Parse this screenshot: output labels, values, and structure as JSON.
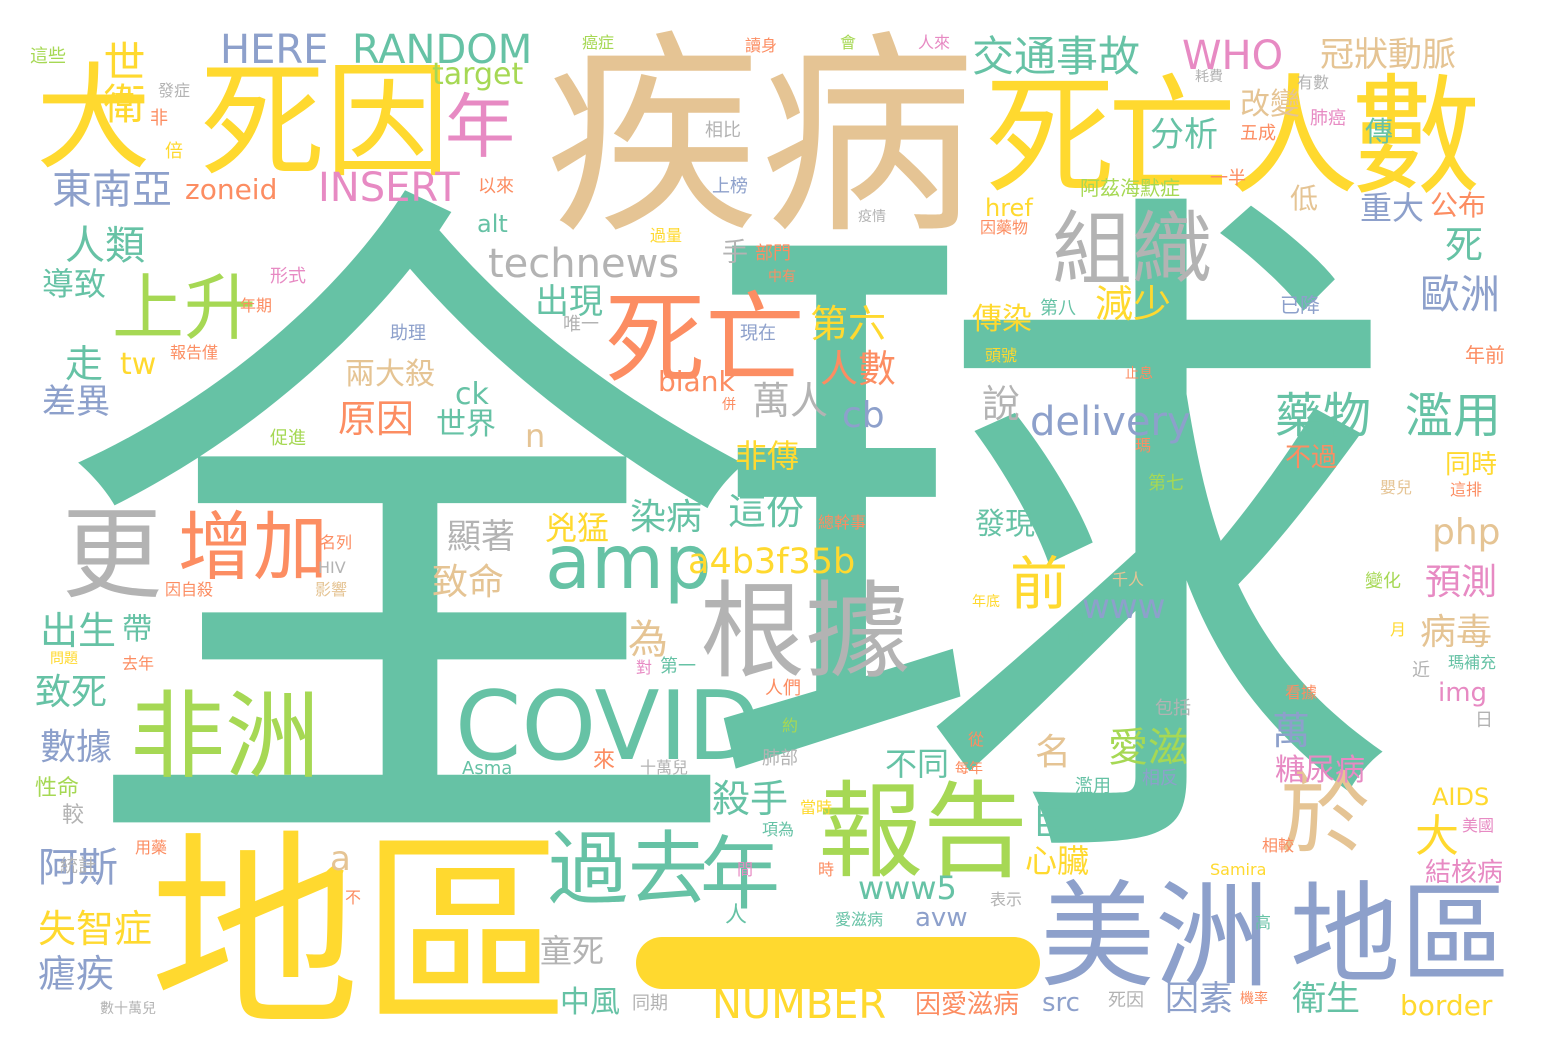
{
  "palette": {
    "teal": "#66c2a5",
    "orange": "#fc8d62",
    "blue": "#8da0cb",
    "pink": "#e78ac3",
    "green": "#a6d854",
    "yellow": "#ffd92f",
    "tan": "#e5c494",
    "gray": "#b3b3b3"
  },
  "words": [
    {
      "text": "全球",
      "color": "teal"
    },
    {
      "text": "疾病",
      "color": "tan"
    },
    {
      "text": "地區",
      "color": "yellow"
    },
    {
      "text": "死因",
      "color": "yellow"
    },
    {
      "text": "大",
      "color": "yellow"
    },
    {
      "text": "死亡人數",
      "color": "yellow"
    },
    {
      "text": "美洲",
      "color": "blue"
    },
    {
      "text": "地區",
      "color": "blue"
    },
    {
      "text": "非洲",
      "color": "green"
    },
    {
      "text": "COVID",
      "color": "teal"
    },
    {
      "text": "報告",
      "color": "green"
    },
    {
      "text": "根據",
      "color": "gray"
    },
    {
      "text": "更",
      "color": "gray"
    },
    {
      "text": "組織",
      "color": "gray"
    },
    {
      "text": "死亡",
      "color": "orange"
    },
    {
      "text": "增加",
      "color": "orange"
    },
    {
      "text": "過去",
      "color": "teal"
    },
    {
      "text": "年",
      "color": "teal"
    },
    {
      "text": "上升",
      "color": "green"
    },
    {
      "text": "於",
      "color": "tan"
    },
    {
      "text": "amp",
      "color": "teal"
    },
    {
      "text": "年",
      "color": "pink"
    },
    {
      "text": "世衛",
      "color": "yellow"
    },
    {
      "text": "HERE",
      "color": "blue"
    },
    {
      "text": "RANDOM",
      "color": "teal"
    },
    {
      "text": "交通事故",
      "color": "teal"
    },
    {
      "text": "WHO",
      "color": "pink"
    },
    {
      "text": "冠狀動脈",
      "color": "tan"
    },
    {
      "text": "target",
      "color": "green"
    },
    {
      "text": "INSERT",
      "color": "pink"
    },
    {
      "text": "zoneid",
      "color": "orange"
    },
    {
      "text": "東南亞",
      "color": "blue"
    },
    {
      "text": "人類",
      "color": "teal"
    },
    {
      "text": "technews",
      "color": "gray"
    },
    {
      "text": "分析",
      "color": "teal"
    },
    {
      "text": "改變",
      "color": "tan"
    },
    {
      "text": "重大",
      "color": "blue"
    },
    {
      "text": "公布",
      "color": "orange"
    },
    {
      "text": "歐洲",
      "color": "blue"
    },
    {
      "text": "死",
      "color": "teal"
    },
    {
      "text": "減少",
      "color": "yellow"
    },
    {
      "text": "傳染",
      "color": "yellow"
    },
    {
      "text": "第六",
      "color": "yellow"
    },
    {
      "text": "人數",
      "color": "orange"
    },
    {
      "text": "出現",
      "color": "teal"
    },
    {
      "text": "tw",
      "color": "yellow"
    },
    {
      "text": "走",
      "color": "teal"
    },
    {
      "text": "差異",
      "color": "blue"
    },
    {
      "text": "導致",
      "color": "teal"
    },
    {
      "text": "萬人",
      "color": "gray"
    },
    {
      "text": "cb",
      "color": "blue"
    },
    {
      "text": "原因",
      "color": "orange"
    },
    {
      "text": "世界",
      "color": "teal"
    },
    {
      "text": "兩大殺",
      "color": "tan"
    },
    {
      "text": "ck",
      "color": "teal"
    },
    {
      "text": "blank",
      "color": "orange"
    },
    {
      "text": "delivery",
      "color": "blue"
    },
    {
      "text": "藥物",
      "color": "teal"
    },
    {
      "text": "濫用",
      "color": "teal"
    },
    {
      "text": "說",
      "color": "gray"
    },
    {
      "text": "n",
      "color": "tan"
    },
    {
      "text": "這份",
      "color": "teal"
    },
    {
      "text": "染病",
      "color": "teal"
    },
    {
      "text": "非傳",
      "color": "yellow"
    },
    {
      "text": "顯著",
      "color": "gray"
    },
    {
      "text": "兇猛",
      "color": "yellow"
    },
    {
      "text": "a4b3f35b",
      "color": "yellow"
    },
    {
      "text": "致命",
      "color": "tan"
    },
    {
      "text": "為",
      "color": "tan"
    },
    {
      "text": "帶",
      "color": "teal"
    },
    {
      "text": "出生",
      "color": "teal"
    },
    {
      "text": "致死",
      "color": "teal"
    },
    {
      "text": "數據",
      "color": "blue"
    },
    {
      "text": "前",
      "color": "yellow"
    },
    {
      "text": "www",
      "color": "blue"
    },
    {
      "text": "php",
      "color": "tan"
    },
    {
      "text": "預測",
      "color": "pink"
    },
    {
      "text": "病毒",
      "color": "tan"
    },
    {
      "text": "萬",
      "color": "blue"
    },
    {
      "text": "愛滋",
      "color": "green"
    },
    {
      "text": "發現",
      "color": "teal"
    },
    {
      "text": "不同",
      "color": "teal"
    },
    {
      "text": "殺手",
      "color": "teal"
    },
    {
      "text": "名",
      "color": "tan"
    },
    {
      "text": "巨大",
      "color": "teal"
    },
    {
      "text": "心臟",
      "color": "yellow"
    },
    {
      "text": "大",
      "color": "yellow"
    },
    {
      "text": "糖尿病",
      "color": "pink"
    },
    {
      "text": "阿斯",
      "color": "blue"
    },
    {
      "text": "失智症",
      "color": "yellow"
    },
    {
      "text": "瘧疾",
      "color": "blue"
    },
    {
      "text": "a",
      "color": "tan"
    },
    {
      "text": "www5",
      "color": "teal"
    },
    {
      "text": "童死",
      "color": "gray"
    },
    {
      "text": "avw",
      "color": "blue"
    },
    {
      "text": "結核病",
      "color": "pink"
    },
    {
      "text": "AIDS",
      "color": "yellow"
    },
    {
      "text": "NUMBER",
      "color": "yellow"
    },
    {
      "text": "中風",
      "color": "teal"
    },
    {
      "text": "因愛滋病",
      "color": "orange"
    },
    {
      "text": "src",
      "color": "blue"
    },
    {
      "text": "因素",
      "color": "blue"
    },
    {
      "text": "衛生",
      "color": "teal"
    },
    {
      "text": "border",
      "color": "yellow"
    },
    {
      "text": "alt",
      "color": "teal"
    },
    {
      "text": "href",
      "color": "yellow"
    },
    {
      "text": "低",
      "color": "tan"
    },
    {
      "text": "同時",
      "color": "yellow"
    },
    {
      "text": "不過",
      "color": "orange"
    },
    {
      "text": "img",
      "color": "pink"
    },
    {
      "text": "手",
      "color": "gray"
    },
    {
      "text": "上榜",
      "color": "blue"
    },
    {
      "text": "以來",
      "color": "orange"
    },
    {
      "text": "相比",
      "color": "gray"
    },
    {
      "text": "非",
      "color": "orange"
    },
    {
      "text": "倍",
      "color": "yellow"
    },
    {
      "text": "發症",
      "color": "gray"
    },
    {
      "text": "一半",
      "color": "orange"
    },
    {
      "text": "五成",
      "color": "orange"
    },
    {
      "text": "肺癌",
      "color": "pink"
    },
    {
      "text": "傳",
      "color": "teal"
    },
    {
      "text": "有數",
      "color": "gray"
    },
    {
      "text": "阿茲海默症",
      "color": "green"
    },
    {
      "text": "第八",
      "color": "teal"
    },
    {
      "text": "已降",
      "color": "blue"
    },
    {
      "text": "年前",
      "color": "orange"
    },
    {
      "text": "現在",
      "color": "blue"
    },
    {
      "text": "助理",
      "color": "blue"
    },
    {
      "text": "唯一",
      "color": "gray"
    },
    {
      "text": "部門",
      "color": "orange"
    },
    {
      "text": "第一",
      "color": "teal"
    },
    {
      "text": "人們",
      "color": "orange"
    },
    {
      "text": "包括",
      "color": "gray"
    },
    {
      "text": "Asma",
      "color": "teal"
    },
    {
      "text": "十萬兒",
      "color": "gray"
    },
    {
      "text": "肺部",
      "color": "gray"
    },
    {
      "text": "行動",
      "color": "teal"
    },
    {
      "text": "年底",
      "color": "yellow"
    },
    {
      "text": "千人",
      "color": "tan"
    },
    {
      "text": "變化",
      "color": "green"
    },
    {
      "text": "嬰兒",
      "color": "tan"
    },
    {
      "text": "第七",
      "color": "green"
    },
    {
      "text": "這排",
      "color": "orange"
    },
    {
      "text": "近",
      "color": "gray"
    },
    {
      "text": "瑪補充",
      "color": "teal"
    },
    {
      "text": "日",
      "color": "gray"
    },
    {
      "text": "月",
      "color": "yellow"
    },
    {
      "text": "看據",
      "color": "orange"
    },
    {
      "text": "相較",
      "color": "orange"
    },
    {
      "text": "美國",
      "color": "pink"
    },
    {
      "text": "Samira",
      "color": "yellow"
    },
    {
      "text": "高",
      "color": "teal"
    },
    {
      "text": "表示",
      "color": "gray"
    },
    {
      "text": "愛滋病",
      "color": "teal"
    },
    {
      "text": "人",
      "color": "teal"
    },
    {
      "text": "每年",
      "color": "orange"
    },
    {
      "text": "濫用",
      "color": "teal"
    },
    {
      "text": "相反",
      "color": "blue"
    },
    {
      "text": "死因",
      "color": "gray"
    },
    {
      "text": "機率",
      "color": "orange"
    },
    {
      "text": "同期",
      "color": "gray"
    },
    {
      "text": "數十萬兒",
      "color": "gray"
    },
    {
      "text": "統計",
      "color": "gray"
    },
    {
      "text": "用藥",
      "color": "orange"
    },
    {
      "text": "較",
      "color": "gray"
    },
    {
      "text": "性命",
      "color": "green"
    },
    {
      "text": "去年",
      "color": "orange"
    },
    {
      "text": "問題",
      "color": "yellow"
    },
    {
      "text": "因自殺",
      "color": "orange"
    },
    {
      "text": "影響",
      "color": "tan"
    },
    {
      "text": "HIV",
      "color": "gray"
    },
    {
      "text": "名列",
      "color": "orange"
    },
    {
      "text": "總幹事",
      "color": "orange"
    },
    {
      "text": "促進",
      "color": "green"
    },
    {
      "text": "報告僅",
      "color": "orange"
    },
    {
      "text": "年期",
      "color": "orange"
    },
    {
      "text": "形式",
      "color": "pink"
    },
    {
      "text": "過量",
      "color": "yellow"
    },
    {
      "text": "疫情",
      "color": "gray"
    },
    {
      "text": "因藥物",
      "color": "orange"
    },
    {
      "text": "頭號",
      "color": "yellow"
    },
    {
      "text": "止息",
      "color": "orange"
    },
    {
      "text": "瑪",
      "color": "orange"
    },
    {
      "text": "讀身",
      "color": "orange"
    },
    {
      "text": "會",
      "color": "green"
    },
    {
      "text": "人來",
      "color": "pink"
    },
    {
      "text": "這些",
      "color": "green"
    },
    {
      "text": "癌症",
      "color": "green"
    },
    {
      "text": "耗費",
      "color": "gray"
    },
    {
      "text": "中有",
      "color": "orange"
    },
    {
      "text": "併",
      "color": "orange"
    },
    {
      "text": "從",
      "color": "orange"
    },
    {
      "text": "約",
      "color": "green"
    },
    {
      "text": "來",
      "color": "orange"
    },
    {
      "text": "當時",
      "color": "yellow"
    },
    {
      "text": "項為",
      "color": "teal"
    },
    {
      "text": "時",
      "color": "orange"
    },
    {
      "text": "間",
      "color": "pink"
    },
    {
      "text": "不",
      "color": "orange"
    },
    {
      "text": "對",
      "color": "pink"
    },
    {
      "text": "未",
      "color": "yellow"
    },
    {
      "text": "選",
      "color": "orange"
    },
    {
      "text": "-",
      "color": "orange"
    }
  ]
}
